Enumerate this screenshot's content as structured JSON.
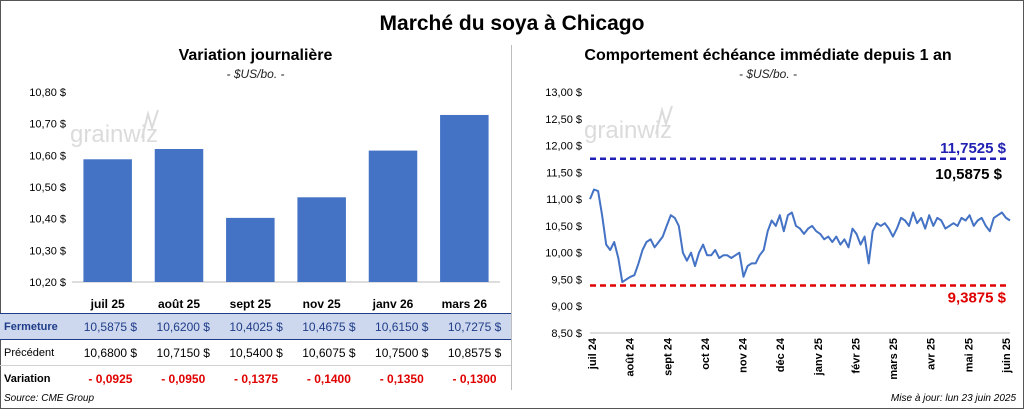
{
  "title": "Marché du soya à Chicago",
  "source": "Source: CME Group",
  "updated": "Mise à jour: lun 23 juin 2025",
  "left": {
    "title": "Variation journalière",
    "subtitle": "- $US/bo. -",
    "logo_text": "grainwiz",
    "chart_data": {
      "type": "bar",
      "categories": [
        "juil 25",
        "août 25",
        "sept 25",
        "nov 25",
        "janv 26",
        "mars 26"
      ],
      "values": [
        10.5875,
        10.62,
        10.4025,
        10.4675,
        10.615,
        10.7275
      ],
      "ylim": [
        10.2,
        10.8
      ],
      "yticks": [
        10.2,
        10.3,
        10.4,
        10.5,
        10.6,
        10.7,
        10.8
      ],
      "ytick_labels": [
        "10,20 $",
        "10,30 $",
        "10,40 $",
        "10,50 $",
        "10,60 $",
        "10,70 $",
        "10,80 $"
      ],
      "bar_color": "#4472c4"
    },
    "table": {
      "rows": [
        {
          "label": "Fermeture",
          "cells": [
            "10,5875  $",
            "10,6200  $",
            "10,4025  $",
            "10,4675  $",
            "10,6150  $",
            "10,7275  $"
          ]
        },
        {
          "label": "Précédent",
          "cells": [
            "10,6800  $",
            "10,7150  $",
            "10,5400  $",
            "10,6075  $",
            "10,7500  $",
            "10,8575  $"
          ]
        },
        {
          "label": "Variation",
          "cells": [
            "- 0,0925",
            "- 0,0950",
            "- 0,1375",
            "- 0,1400",
            "- 0,1350",
            "- 0,1300"
          ]
        }
      ]
    }
  },
  "right": {
    "title": "Comportement échéance immédiate depuis 1 an",
    "subtitle": "- $US/bo. -",
    "logo_text": "grainwiz",
    "chart_data": {
      "type": "line",
      "ylim": [
        8.5,
        13.0
      ],
      "yticks": [
        8.5,
        9.0,
        9.5,
        10.0,
        10.5,
        11.0,
        11.5,
        12.0,
        12.5,
        13.0
      ],
      "ytick_labels": [
        "8,50 $",
        "9,00 $",
        "9,50 $",
        "10,00 $",
        "10,50 $",
        "11,00 $",
        "11,50 $",
        "12,00 $",
        "12,50 $",
        "13,00 $"
      ],
      "xticks": [
        "juil 24",
        "août 24",
        "sept 24",
        "oct 24",
        "nov 24",
        "déc 24",
        "janv 25",
        "févr 25",
        "mars 25",
        "avr 25",
        "mai 25",
        "juin 25"
      ],
      "x_index_range": [
        0,
        52
      ],
      "series": [
        {
          "color": "#4472c4",
          "x": [
            0,
            0.5,
            1,
            1.5,
            2,
            2.5,
            3,
            3.5,
            4,
            4.5,
            5,
            5.5,
            6,
            6.5,
            7,
            7.5,
            8,
            8.5,
            9,
            9.5,
            10,
            10.5,
            11,
            11.5,
            12,
            12.5,
            13,
            13.5,
            14,
            14.5,
            15,
            15.5,
            16,
            16.5,
            17,
            17.5,
            18,
            18.5,
            19,
            19.5,
            20,
            20.5,
            21,
            21.5,
            22,
            22.5,
            23,
            23.5,
            24,
            24.5,
            25,
            25.5,
            26,
            26.5,
            27,
            27.5,
            28,
            28.5,
            29,
            29.5,
            30,
            30.5,
            31,
            31.5,
            32,
            32.5,
            33,
            33.5,
            34,
            34.5,
            35,
            35.5,
            36,
            36.5,
            37,
            37.5,
            38,
            38.5,
            39,
            39.5,
            40,
            40.5,
            41,
            41.5,
            42,
            42.5,
            43,
            43.5,
            44,
            44.5,
            45,
            45.5,
            46,
            46.5,
            47,
            47.5,
            48,
            48.5,
            49,
            49.5,
            50,
            50.5,
            51,
            51.5,
            52
          ],
          "values": [
            11.0,
            11.18,
            11.15,
            10.7,
            10.15,
            10.05,
            10.2,
            9.9,
            9.45,
            9.5,
            9.55,
            9.58,
            9.8,
            10.05,
            10.2,
            10.25,
            10.1,
            10.2,
            10.3,
            10.5,
            10.7,
            10.65,
            10.5,
            10.0,
            9.85,
            10.0,
            9.75,
            10.0,
            10.15,
            9.95,
            9.95,
            10.05,
            9.9,
            9.95,
            9.95,
            9.9,
            9.95,
            10.0,
            9.55,
            9.75,
            9.8,
            9.8,
            9.95,
            10.05,
            10.4,
            10.6,
            10.5,
            10.7,
            10.4,
            10.7,
            10.75,
            10.5,
            10.45,
            10.35,
            10.45,
            10.5,
            10.4,
            10.35,
            10.25,
            10.3,
            10.2,
            10.3,
            10.15,
            10.25,
            10.1,
            10.45,
            10.35,
            10.15,
            10.3,
            9.8,
            10.4,
            10.55,
            10.5,
            10.55,
            10.45,
            10.3,
            10.45,
            10.65,
            10.6,
            10.5,
            10.75,
            10.55,
            10.65,
            10.45,
            10.7,
            10.5,
            10.65,
            10.6,
            10.45,
            10.5,
            10.55,
            10.5,
            10.65,
            10.6,
            10.7,
            10.5,
            10.6,
            10.65,
            10.5,
            10.4,
            10.65,
            10.7,
            10.75,
            10.65,
            10.6
          ]
        }
      ],
      "ref_lines": [
        {
          "value": 11.7525,
          "label": "11,7525 $",
          "color": "#1f1fb4"
        },
        {
          "value": 9.3875,
          "label": "9,3875 $",
          "color": "#e00000"
        }
      ],
      "last_label": "10,5875 $"
    }
  }
}
